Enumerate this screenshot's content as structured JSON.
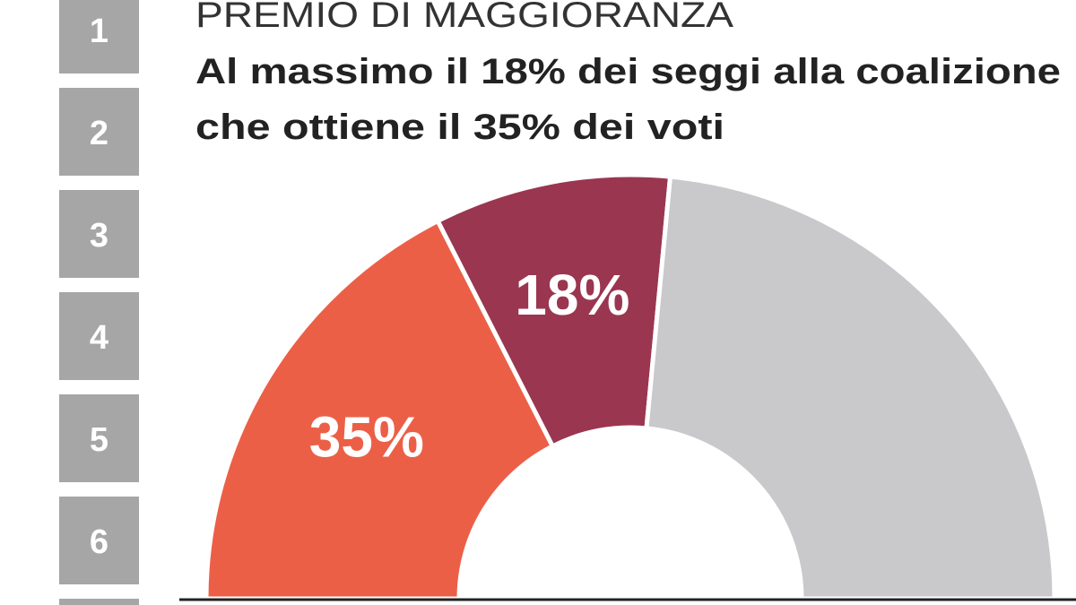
{
  "steps": [
    "1",
    "2",
    "3",
    "4",
    "5",
    "6"
  ],
  "chart_data": {
    "type": "half-donut",
    "title": "PREMIO DI MAGGIORANZA",
    "subtitle": [
      "Al massimo il 18% dei seggi alla coalizione",
      "che ottiene il 35% dei voti"
    ],
    "values": [
      35,
      18,
      47
    ],
    "value_labels": [
      "35%",
      "18%",
      null
    ],
    "colors": [
      "#ec5f47",
      "#9a3650",
      "#c9c9cc"
    ]
  }
}
